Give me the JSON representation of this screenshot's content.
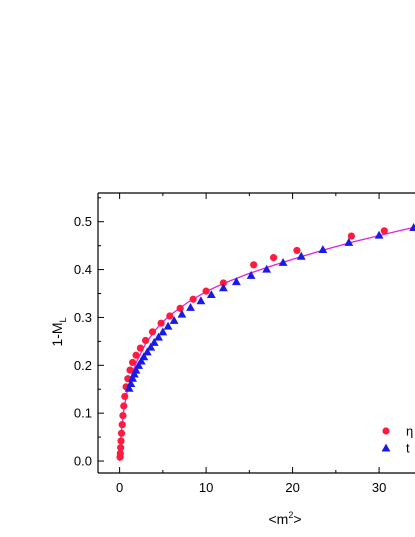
{
  "chart_data": {
    "type": "scatter",
    "xlabel_base": "<m",
    "xlabel_sup": "2",
    "xlabel_end": ">",
    "ylabel_base": "1-M",
    "ylabel_sub": "L",
    "xlim": [
      -2.5,
      34.5
    ],
    "ylim": [
      -0.025,
      0.56
    ],
    "xticks": [
      0,
      10,
      20,
      30
    ],
    "yticks": [
      0.0,
      0.1,
      0.2,
      0.3,
      0.4,
      0.5
    ],
    "grid": false,
    "legend_position": "bottom-right",
    "series": [
      {
        "name": "η",
        "marker": "circle",
        "color": "#ff1a40",
        "x": [
          0.05,
          0.08,
          0.12,
          0.16,
          0.22,
          0.3,
          0.38,
          0.48,
          0.6,
          0.75,
          0.95,
          1.2,
          1.5,
          1.9,
          2.4,
          3.0,
          3.8,
          4.8,
          5.8,
          7.0,
          8.5,
          10.0,
          12.0,
          15.5,
          17.8,
          20.5,
          26.8,
          30.6
        ],
        "y": [
          0.008,
          0.016,
          0.028,
          0.042,
          0.058,
          0.076,
          0.095,
          0.115,
          0.135,
          0.155,
          0.172,
          0.19,
          0.206,
          0.221,
          0.236,
          0.252,
          0.27,
          0.288,
          0.303,
          0.319,
          0.338,
          0.355,
          0.372,
          0.41,
          0.425,
          0.44,
          0.47,
          0.481
        ]
      },
      {
        "name": "t",
        "marker": "triangle",
        "color": "#1a1ae6",
        "x": [
          1.1,
          1.3,
          1.5,
          1.7,
          1.9,
          2.2,
          2.5,
          2.8,
          3.2,
          3.6,
          4.0,
          4.5,
          5.0,
          5.6,
          6.3,
          7.2,
          8.2,
          9.4,
          10.6,
          12.0,
          13.5,
          15.2,
          17.0,
          18.9,
          21.0,
          23.5,
          26.5,
          30.0,
          34.0
        ],
        "y": [
          0.152,
          0.162,
          0.173,
          0.182,
          0.19,
          0.2,
          0.209,
          0.218,
          0.228,
          0.238,
          0.248,
          0.259,
          0.27,
          0.282,
          0.294,
          0.307,
          0.321,
          0.335,
          0.348,
          0.362,
          0.375,
          0.388,
          0.401,
          0.415,
          0.428,
          0.442,
          0.457,
          0.472,
          0.488
        ]
      }
    ],
    "fit_line": {
      "color": "#e020e0",
      "x": [
        0.0,
        0.02,
        0.05,
        0.1,
        0.2,
        0.35,
        0.5,
        0.75,
        1.0,
        1.5,
        2.0,
        3.0,
        4.0,
        5.0,
        6.0,
        8.0,
        10.0,
        12.0,
        15.0,
        18.0,
        21.0,
        24.0,
        27.0,
        30.0,
        33.0,
        34.5
      ],
      "y": [
        0.0,
        0.01,
        0.022,
        0.038,
        0.061,
        0.088,
        0.108,
        0.135,
        0.155,
        0.186,
        0.209,
        0.245,
        0.271,
        0.291,
        0.307,
        0.333,
        0.354,
        0.371,
        0.392,
        0.41,
        0.427,
        0.443,
        0.458,
        0.471,
        0.484,
        0.49
      ]
    }
  }
}
